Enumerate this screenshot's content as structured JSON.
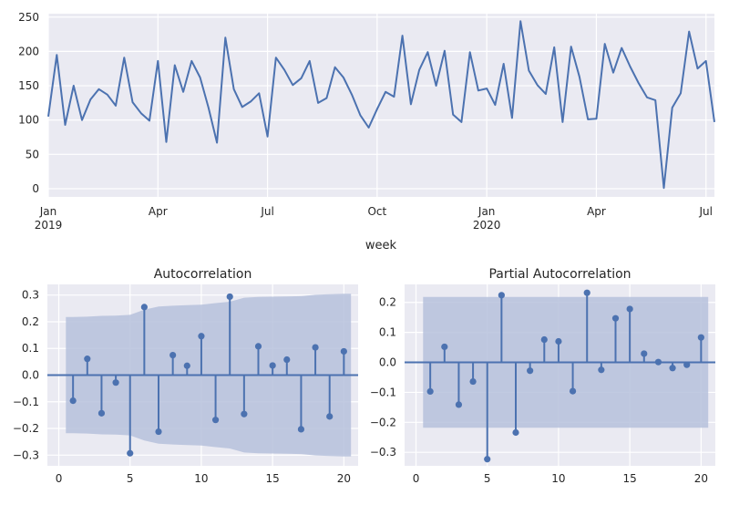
{
  "colors": {
    "axes_bg": "#eaeaf2",
    "grid": "#ffffff",
    "line": "#4c72b0",
    "band": "#b6c1dc",
    "text": "#262626"
  },
  "chart_data": [
    {
      "type": "line",
      "xlabel": "week",
      "ylabel": "",
      "ylim": [
        -12,
        255
      ],
      "y_ticks": [
        "0",
        "50",
        "100",
        "150",
        "200",
        "250"
      ],
      "x_ticks": [
        {
          "label": "Jan",
          "sub": "2019",
          "week": 0
        },
        {
          "label": "Apr",
          "sub": "",
          "week": 13
        },
        {
          "label": "Jul",
          "sub": "",
          "week": 26
        },
        {
          "label": "Oct",
          "sub": "",
          "week": 39
        },
        {
          "label": "Jan",
          "sub": "2020",
          "week": 52
        },
        {
          "label": "Apr",
          "sub": "",
          "week": 65
        },
        {
          "label": "Jul",
          "sub": "",
          "week": 78
        }
      ],
      "x_range_weeks": [
        0,
        79
      ],
      "values": [
        105,
        195,
        93,
        150,
        100,
        130,
        145,
        137,
        121,
        191,
        126,
        110,
        99,
        186,
        68,
        180,
        141,
        186,
        162,
        118,
        67,
        220,
        145,
        119,
        127,
        139,
        76,
        191,
        173,
        151,
        161,
        186,
        125,
        132,
        177,
        162,
        137,
        107,
        89,
        116,
        141,
        134,
        223,
        123,
        173,
        199,
        150,
        201,
        108,
        97,
        199,
        143,
        146,
        122,
        182,
        103,
        244,
        172,
        151,
        138,
        206,
        97,
        207,
        163,
        101,
        102,
        211,
        169,
        205,
        178,
        154,
        133,
        129,
        1,
        118,
        139,
        229,
        175,
        186,
        97
      ]
    },
    {
      "type": "stem",
      "title": "Autocorrelation",
      "xlim": [
        -0.8,
        21
      ],
      "ylim": [
        -0.34,
        0.34
      ],
      "x_ticks": [
        "0",
        "5",
        "10",
        "15",
        "20"
      ],
      "y_ticks": [
        "−0.3",
        "−0.2",
        "−0.1",
        "0.0",
        "0.1",
        "0.2",
        "0.3"
      ],
      "lags": [
        1,
        2,
        3,
        4,
        5,
        6,
        7,
        8,
        9,
        10,
        11,
        12,
        13,
        14,
        15,
        16,
        17,
        18,
        19,
        20
      ],
      "values": [
        -0.096,
        0.061,
        -0.143,
        -0.028,
        -0.293,
        0.255,
        -0.212,
        0.075,
        0.035,
        0.146,
        -0.168,
        0.294,
        -0.146,
        0.108,
        0.036,
        0.058,
        -0.203,
        0.104,
        -0.155,
        0.089
      ],
      "conf_lags": [
        0.5,
        1,
        2,
        3,
        4,
        5,
        6,
        7,
        8,
        9,
        10,
        11,
        12,
        13,
        14,
        15,
        16,
        17,
        18,
        19,
        20,
        20.5
      ],
      "conf_bound": [
        0.218,
        0.218,
        0.219,
        0.222,
        0.223,
        0.226,
        0.245,
        0.257,
        0.26,
        0.262,
        0.264,
        0.27,
        0.275,
        0.29,
        0.293,
        0.294,
        0.295,
        0.296,
        0.301,
        0.303,
        0.305,
        0.305
      ]
    },
    {
      "type": "stem",
      "title": "Partial Autocorrelation",
      "xlim": [
        -0.8,
        21
      ],
      "ylim": [
        -0.345,
        0.26
      ],
      "x_ticks": [
        "0",
        "5",
        "10",
        "15",
        "20"
      ],
      "y_ticks": [
        "−0.3",
        "−0.2",
        "−0.1",
        "0.0",
        "0.1",
        "0.2"
      ],
      "lags": [
        1,
        2,
        3,
        4,
        5,
        6,
        7,
        8,
        9,
        10,
        11,
        12,
        13,
        14,
        15,
        16,
        17,
        18,
        19,
        20
      ],
      "values": [
        -0.097,
        0.052,
        -0.141,
        -0.064,
        -0.323,
        0.224,
        -0.234,
        -0.028,
        0.076,
        0.07,
        -0.096,
        0.232,
        -0.025,
        0.147,
        0.178,
        0.029,
        0.001,
        -0.019,
        -0.008,
        0.083
      ],
      "conf_lags": [
        0.5,
        20.5
      ],
      "conf_bound": [
        0.218,
        0.218
      ]
    }
  ]
}
